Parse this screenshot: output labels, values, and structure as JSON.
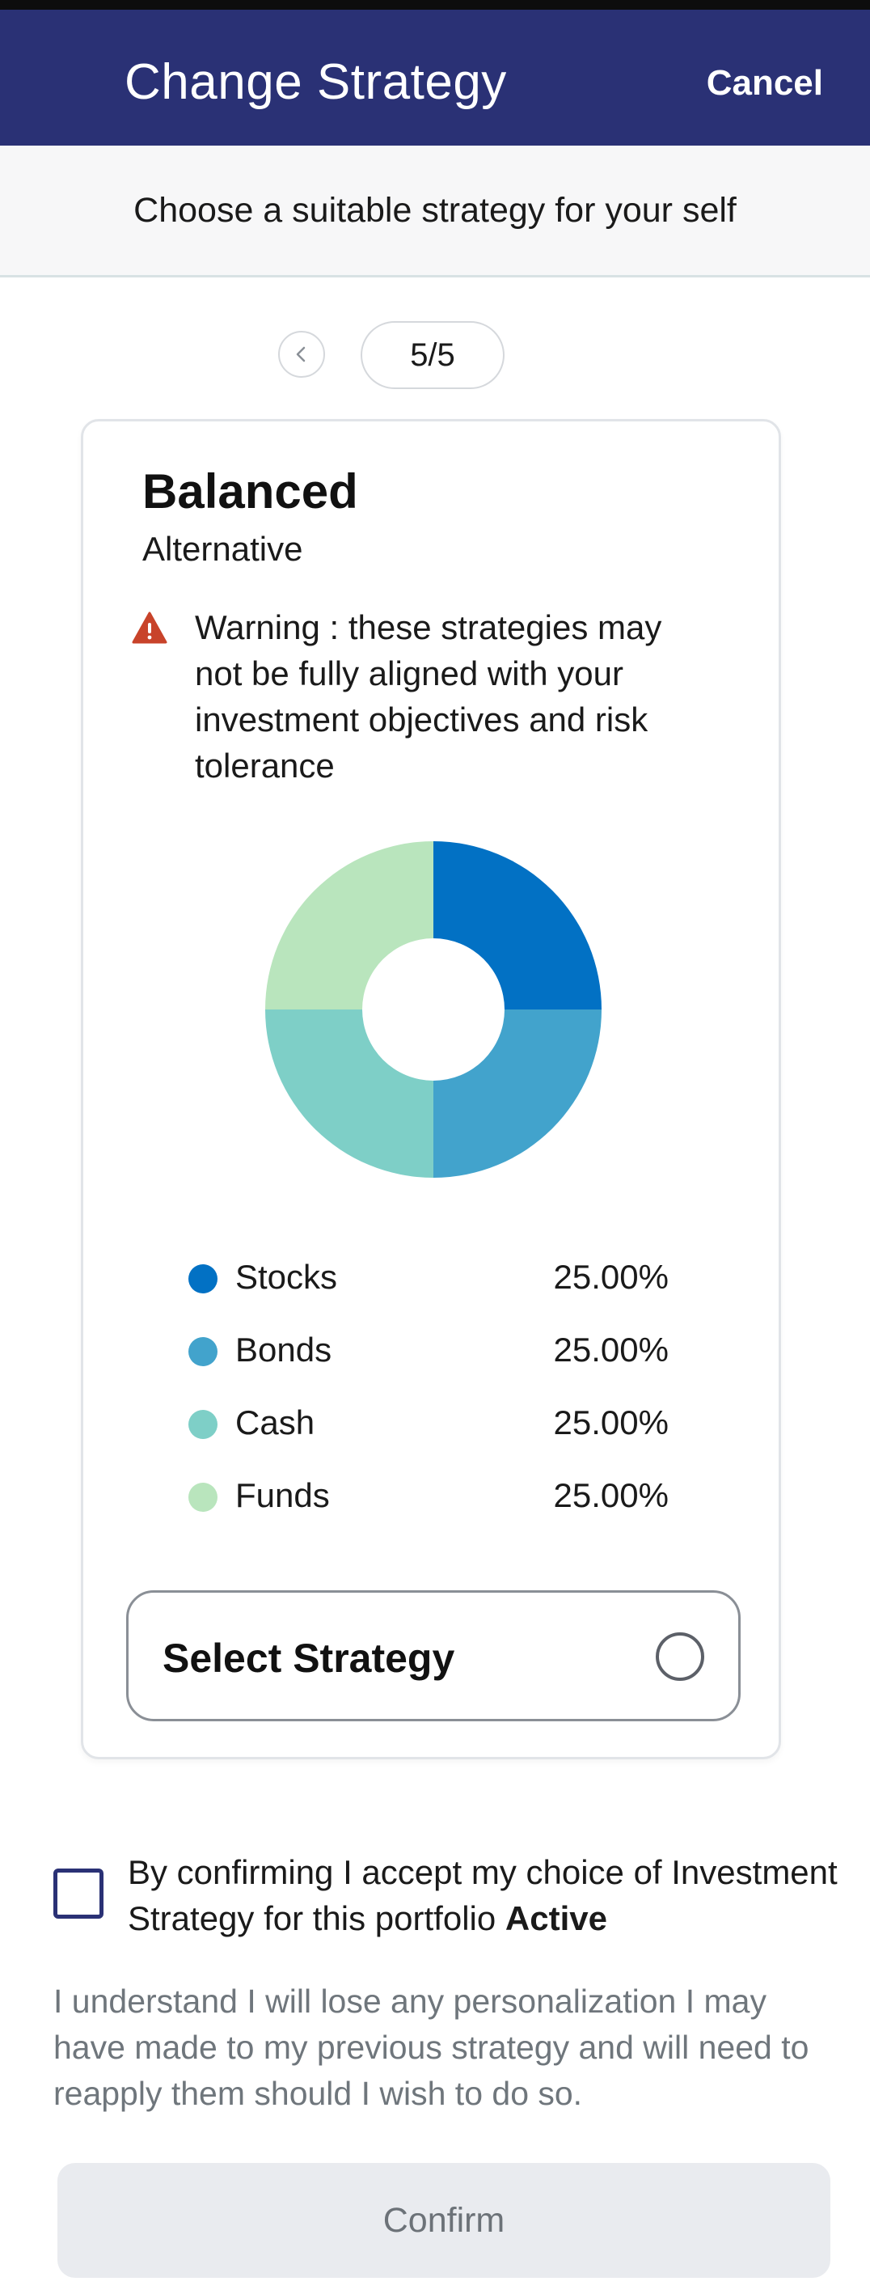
{
  "header": {
    "title": "Change Strategy",
    "cancel_label": "Cancel"
  },
  "subheader": {
    "text": "Choose a suitable strategy for your self"
  },
  "pager": {
    "count": "5/5",
    "prev_icon": "chevron-left-icon"
  },
  "strategy": {
    "title": "Balanced",
    "subtitle": "Alternative",
    "warning_icon": "warning-triangle-icon",
    "warning_color": "#c8432a",
    "warning_text": "Warning : these strategies may not be fully aligned with your investment objectives and risk tolerance",
    "select_label": "Select Strategy"
  },
  "chart_data": {
    "type": "pie",
    "donut": true,
    "categories": [
      "Stocks",
      "Bonds",
      "Cash",
      "Funds"
    ],
    "values": [
      25,
      25,
      25,
      25
    ],
    "labels": [
      "25.00%",
      "25.00%",
      "25.00%",
      "25.00%"
    ],
    "colors": [
      "#0271c4",
      "#42a3cc",
      "#7ecfc7",
      "#b9e5bd"
    ],
    "legend": "bottom"
  },
  "consent": {
    "text": "By confirming I accept my choice of Investment Strategy for this portfolio ",
    "portfolio_name": "Active"
  },
  "note": {
    "text": "I understand I will lose any personalization I may have made to my previous strategy and will need to reapply them should I wish to do so."
  },
  "confirm": {
    "label": "Confirm"
  }
}
